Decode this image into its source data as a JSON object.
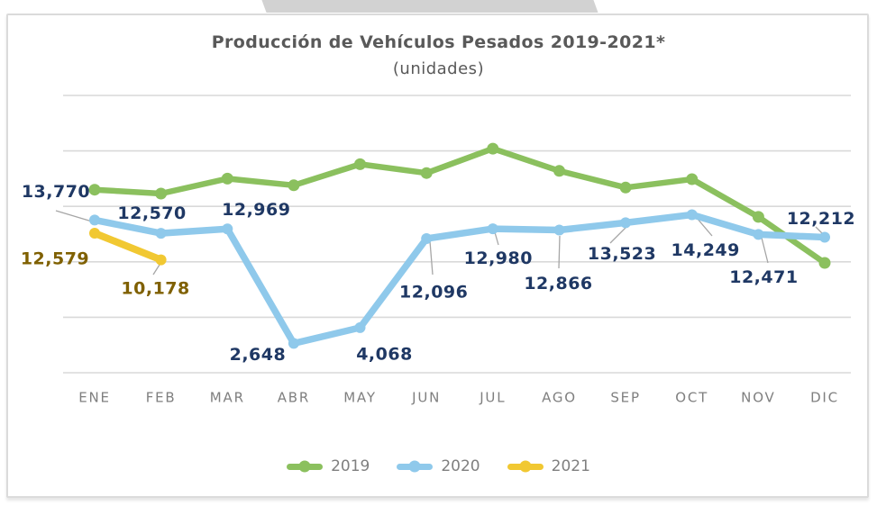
{
  "header": {
    "title": "Producción de Vehículos Pesados 2019-2021*",
    "subtitle": "(unidades)"
  },
  "chart_data": {
    "type": "line",
    "categories": [
      "ENE",
      "FEB",
      "MAR",
      "ABR",
      "MAY",
      "JUN",
      "JUL",
      "AGO",
      "SEP",
      "OCT",
      "NOV",
      "DIC"
    ],
    "series": [
      {
        "name": "2019",
        "color": "#8BC05E",
        "values": [
          16500,
          16150,
          17500,
          16900,
          18800,
          18000,
          20200,
          18200,
          16700,
          17450,
          14050,
          9900
        ],
        "labeled": false,
        "note": "values estimated from line position (no data labels shown)"
      },
      {
        "name": "2020",
        "color": "#8FC9EB",
        "values": [
          13770,
          12570,
          12969,
          2648,
          4068,
          12096,
          12980,
          12866,
          13523,
          14249,
          12471,
          12212
        ],
        "labeled": true,
        "label_color": "#1F3864"
      },
      {
        "name": "2021",
        "color": "#F1C832",
        "values": [
          12579,
          10178
        ],
        "labeled": true,
        "label_color": "#7F6000"
      }
    ],
    "ylim": [
      0,
      25000
    ],
    "grid_step": 5000,
    "grid": true,
    "y_axis_labels_visible": false,
    "legend_position": "bottom",
    "title": "Producción de Vehículos Pesados 2019-2021*",
    "subtitle": "(unidades)",
    "colors": {
      "gridline": "#D9D9D9",
      "leader_line": "#A6A6A6",
      "axis_text": "#7F7F7F",
      "title_text": "#595959",
      "legend_text": "#7F7F7F"
    }
  }
}
